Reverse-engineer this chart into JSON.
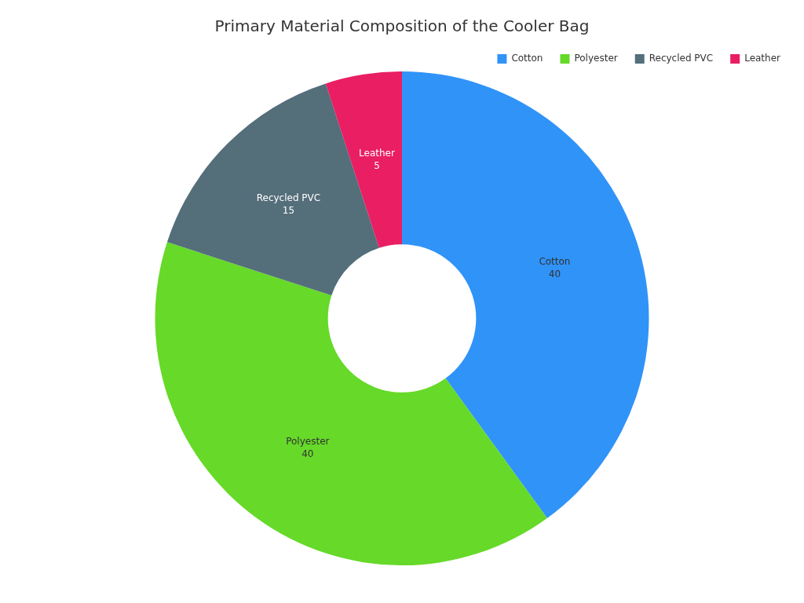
{
  "chart_data": {
    "type": "donut",
    "title": "Primary Material Composition of the Cooler Bag",
    "categories": [
      "Cotton",
      "Polyester",
      "Recycled PVC",
      "Leather"
    ],
    "values": [
      40,
      40,
      15,
      5
    ],
    "colors": [
      "#3093f8",
      "#66d929",
      "#546e7a",
      "#e91e63"
    ],
    "legend": "top right",
    "data_labels": true
  }
}
